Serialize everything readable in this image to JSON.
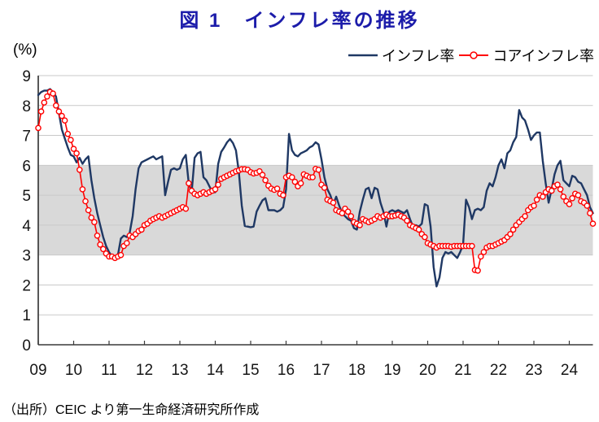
{
  "title": "図 1　インフレ率の推移",
  "y_axis_unit": "(%)",
  "source": "（出所）CEIC より第一生命経済研究所作成",
  "colors": {
    "title_blue": "#1c1caa",
    "inflation_navy": "#1f3864",
    "core_inflation_red": "#ff0000",
    "band_gray": "#d9d9d9",
    "gridline_gray": "#c9c9c9",
    "axis_dark": "#3a3a3a",
    "tick_label": "#151515"
  },
  "legend": [
    {
      "label": "インフレ率",
      "color": "#1f3864",
      "marker": "none"
    },
    {
      "label": "コアインフレ率",
      "color": "#ff0000",
      "marker": "circle"
    }
  ],
  "chart_data": {
    "type": "line",
    "title": "図 1　インフレ率の推移",
    "ylabel": "(%)",
    "xlabel": "",
    "ylim": [
      0,
      9
    ],
    "y_ticks": [
      0,
      1,
      2,
      3,
      4,
      5,
      6,
      7,
      8,
      9
    ],
    "x_tick_labels": [
      "09",
      "10",
      "11",
      "12",
      "13",
      "14",
      "15",
      "16",
      "17",
      "18",
      "19",
      "20",
      "21",
      "22",
      "23",
      "24"
    ],
    "frequency": "monthly",
    "x_start": "2009-01",
    "x_end": "2024-09",
    "grid": true,
    "legend_position": "top-right",
    "shaded_band": {
      "from": 3,
      "to": 6,
      "color": "#d9d9d9"
    },
    "series": [
      {
        "name": "インフレ率",
        "color": "#1f3864",
        "marker": "none",
        "width": 2.4,
        "values": [
          8.35,
          8.45,
          8.5,
          8.5,
          8.55,
          8.45,
          8.3,
          7.75,
          7.2,
          6.9,
          6.6,
          6.35,
          6.3,
          6.1,
          6.25,
          6.05,
          6.2,
          6.3,
          5.5,
          4.9,
          4.4,
          4.0,
          3.6,
          3.3,
          3.1,
          2.95,
          2.85,
          3.0,
          3.55,
          3.65,
          3.6,
          3.75,
          4.3,
          5.2,
          5.9,
          6.1,
          6.15,
          6.2,
          6.25,
          6.3,
          6.2,
          6.25,
          6.3,
          5.0,
          5.45,
          5.85,
          5.9,
          5.85,
          5.9,
          6.2,
          6.35,
          5.4,
          5.1,
          6.25,
          6.4,
          6.45,
          5.6,
          5.5,
          5.3,
          5.1,
          5.1,
          6.05,
          6.45,
          6.6,
          6.77,
          6.88,
          6.74,
          6.5,
          5.77,
          4.65,
          3.97,
          3.95,
          3.93,
          3.95,
          4.45,
          4.65,
          4.83,
          4.9,
          4.5,
          4.5,
          4.5,
          4.45,
          4.5,
          4.6,
          5.2,
          7.05,
          6.5,
          6.35,
          6.3,
          6.4,
          6.45,
          6.5,
          6.6,
          6.65,
          6.77,
          6.7,
          6.2,
          5.6,
          5.2,
          5.0,
          4.7,
          4.95,
          4.65,
          4.4,
          4.3,
          4.2,
          4.15,
          3.9,
          3.85,
          4.45,
          4.85,
          5.2,
          5.25,
          4.9,
          5.25,
          5.2,
          4.75,
          4.45,
          3.95,
          4.45,
          4.5,
          4.45,
          4.5,
          4.45,
          4.4,
          4.5,
          4.2,
          3.95,
          4.0,
          3.95,
          4.05,
          4.7,
          4.65,
          3.95,
          2.6,
          1.95,
          2.25,
          2.9,
          3.1,
          3.05,
          3.1,
          3.0,
          2.9,
          3.1,
          3.35,
          4.85,
          4.6,
          4.2,
          4.5,
          4.55,
          4.5,
          4.6,
          5.15,
          5.4,
          5.3,
          5.6,
          6.0,
          6.2,
          5.9,
          6.4,
          6.5,
          6.77,
          6.95,
          7.85,
          7.6,
          7.5,
          7.2,
          6.85,
          7.0,
          7.1,
          7.1,
          6.15,
          5.4,
          4.75,
          5.2,
          5.7,
          6.0,
          6.15,
          5.5,
          5.4,
          5.3,
          5.65,
          5.6,
          5.45,
          5.4,
          5.2,
          5.0,
          4.6,
          4.4
        ]
      },
      {
        "name": "コアインフレ率",
        "color": "#ff0000",
        "marker": "circle",
        "width": 1.6,
        "values": [
          7.25,
          7.8,
          8.1,
          8.3,
          8.45,
          8.4,
          8.0,
          7.8,
          7.65,
          7.5,
          7.05,
          6.85,
          6.55,
          6.4,
          5.85,
          5.2,
          4.8,
          4.5,
          4.25,
          4.1,
          3.65,
          3.35,
          3.2,
          3.05,
          2.95,
          2.95,
          2.9,
          2.95,
          3.0,
          3.3,
          3.4,
          3.65,
          3.6,
          3.7,
          3.8,
          3.85,
          4.0,
          4.05,
          4.15,
          4.2,
          4.25,
          4.3,
          4.25,
          4.3,
          4.35,
          4.4,
          4.45,
          4.5,
          4.55,
          4.6,
          4.55,
          5.4,
          5.15,
          5.05,
          5.0,
          5.05,
          5.1,
          5.05,
          5.1,
          5.15,
          5.2,
          5.35,
          5.55,
          5.6,
          5.65,
          5.7,
          5.75,
          5.8,
          5.83,
          5.87,
          5.87,
          5.85,
          5.77,
          5.73,
          5.75,
          5.8,
          5.68,
          5.5,
          5.32,
          5.22,
          5.18,
          5.22,
          5.05,
          5.0,
          5.6,
          5.65,
          5.6,
          5.45,
          5.3,
          5.4,
          5.7,
          5.65,
          5.6,
          5.6,
          5.88,
          5.85,
          5.35,
          5.25,
          4.85,
          4.8,
          4.75,
          4.5,
          4.45,
          4.4,
          4.55,
          4.45,
          4.3,
          4.1,
          4.05,
          4.0,
          4.2,
          4.15,
          4.1,
          4.15,
          4.2,
          4.3,
          4.25,
          4.3,
          4.35,
          4.3,
          4.3,
          4.32,
          4.35,
          4.3,
          4.25,
          4.15,
          4.0,
          3.95,
          3.9,
          3.85,
          3.7,
          3.6,
          3.4,
          3.35,
          3.3,
          3.25,
          3.3,
          3.3,
          3.3,
          3.3,
          3.28,
          3.3,
          3.3,
          3.3,
          3.3,
          3.3,
          3.3,
          3.3,
          2.5,
          2.48,
          2.95,
          3.1,
          3.25,
          3.3,
          3.3,
          3.35,
          3.4,
          3.45,
          3.5,
          3.6,
          3.7,
          3.85,
          4.0,
          4.1,
          4.2,
          4.3,
          4.5,
          4.6,
          4.65,
          4.85,
          5.0,
          4.95,
          5.1,
          5.2,
          5.15,
          5.3,
          5.35,
          5.2,
          4.95,
          4.8,
          4.7,
          4.9,
          5.05,
          5.0,
          4.8,
          4.75,
          4.65,
          4.4,
          4.05
        ]
      }
    ]
  }
}
